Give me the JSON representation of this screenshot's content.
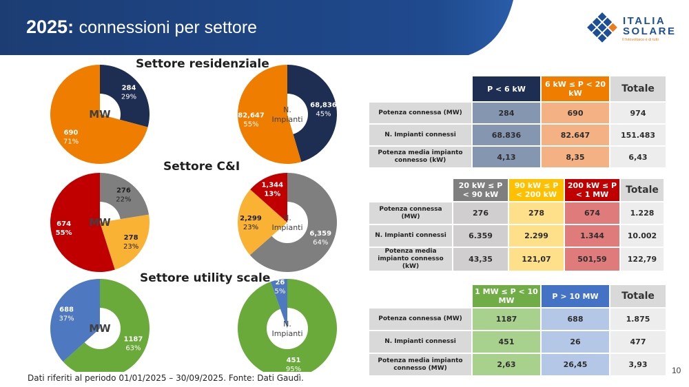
{
  "header": {
    "title_year": "2025:",
    "title_rest": "connessioni per settore",
    "logo": {
      "line1": "ITALIA",
      "line2": "SOLARE",
      "tagline": "Il fotovoltaico è di tutti"
    }
  },
  "colors": {
    "header_blue": "#1c3d74",
    "navy": "#1d2e52",
    "orange": "#ef7d00",
    "gray": "#7f7f7f",
    "yellow": "#f9b233",
    "red": "#c00000",
    "blue": "#4e78c0",
    "green": "#6aaa3a"
  },
  "sections": [
    {
      "title": "Settore residenziale"
    },
    {
      "title": "Settore C&I"
    },
    {
      "title": "Settore utility scale"
    }
  ],
  "chart_data": [
    {
      "type": "pie",
      "variant": "donut",
      "section": "Settore residenziale",
      "center_label": "MW",
      "categories": [
        "P < 6 kW",
        "6 kW ≤ P < 20 kW"
      ],
      "values": [
        284,
        690
      ],
      "percent": [
        29,
        71
      ],
      "value_labels": [
        "284",
        "690"
      ],
      "percent_labels": [
        "29%",
        "71%"
      ],
      "colors": [
        "#1d2e52",
        "#ef7d00"
      ],
      "label_colors": [
        "#ffffff",
        "#ffffff"
      ]
    },
    {
      "type": "pie",
      "variant": "donut",
      "section": "Settore residenziale",
      "center_label": "N. Impianti",
      "categories": [
        "P < 6 kW",
        "6 kW ≤ P < 20 kW"
      ],
      "values": [
        68836,
        82647
      ],
      "percent": [
        45,
        55
      ],
      "value_labels": [
        "68,836",
        "82,647"
      ],
      "percent_labels": [
        "45%",
        "55%"
      ],
      "colors": [
        "#1d2e52",
        "#ef7d00"
      ],
      "label_colors": [
        "#ffffff",
        "#ffffff"
      ]
    },
    {
      "type": "pie",
      "variant": "donut",
      "section": "Settore C&I",
      "center_label": "MW",
      "categories": [
        "20 kW ≤ P < 90 kW",
        "90 kW ≤ P < 200 kW",
        "200 kW ≤ P < 1 MW"
      ],
      "values": [
        276,
        278,
        674
      ],
      "percent": [
        22,
        23,
        55
      ],
      "value_labels": [
        "276",
        "278",
        "674"
      ],
      "percent_labels": [
        "22%",
        "23%",
        "55%"
      ],
      "colors": [
        "#7f7f7f",
        "#f9b233",
        "#c00000"
      ],
      "label_colors": [
        "#1f1f1f",
        "#1f1f1f",
        "#ffffff"
      ]
    },
    {
      "type": "pie",
      "variant": "donut",
      "section": "Settore C&I",
      "center_label": "N. Impianti",
      "categories": [
        "20 kW ≤ P < 90 kW",
        "90 kW ≤ P < 200 kW",
        "200 kW ≤ P < 1 MW"
      ],
      "values": [
        6359,
        2299,
        1344
      ],
      "percent": [
        64,
        23,
        13
      ],
      "value_labels": [
        "6,359",
        "2,299",
        "1,344"
      ],
      "percent_labels": [
        "64%",
        "23%",
        "13%"
      ],
      "colors": [
        "#7f7f7f",
        "#f9b233",
        "#c00000"
      ],
      "label_colors": [
        "#ffffff",
        "#1f1f1f",
        "#ffffff"
      ]
    },
    {
      "type": "pie",
      "variant": "donut",
      "section": "Settore utility scale",
      "center_label": "MW",
      "categories": [
        "1 MW ≤ P < 10 MW",
        "P > 10 MW"
      ],
      "values": [
        1187,
        688
      ],
      "percent": [
        63,
        37
      ],
      "value_labels": [
        "1187",
        "688"
      ],
      "percent_labels": [
        "63%",
        "37%"
      ],
      "colors": [
        "#6aaa3a",
        "#4e78c0"
      ],
      "label_colors": [
        "#ffffff",
        "#ffffff"
      ]
    },
    {
      "type": "pie",
      "variant": "donut",
      "section": "Settore utility scale",
      "center_label": "N. Impianti",
      "categories": [
        "1 MW ≤ P < 10 MW",
        "P > 10 MW"
      ],
      "values": [
        451,
        26
      ],
      "percent": [
        95,
        5
      ],
      "value_labels": [
        "451",
        "26"
      ],
      "percent_labels": [
        "95%",
        "5%"
      ],
      "colors": [
        "#6aaa3a",
        "#4e78c0"
      ],
      "label_colors": [
        "#ffffff",
        "#ffffff"
      ]
    }
  ],
  "tables": [
    {
      "columns": [
        {
          "label": "P < 6 kW",
          "bg": "#1d2e52",
          "fg": "#ffffff",
          "cell_bg": "#8496b0"
        },
        {
          "label": "6 kW ≤ P < 20 kW",
          "bg": "#ef7d00",
          "fg": "#ffffff",
          "cell_bg": "#f4b183"
        }
      ],
      "total_label": "Totale",
      "rows": [
        {
          "label": "Potenza connessa  (MW)",
          "values": [
            "284",
            "690"
          ],
          "total": "974"
        },
        {
          "label": "N. Impianti connessi",
          "values": [
            "68.836",
            "82.647"
          ],
          "total": "151.483"
        },
        {
          "label": "Potenza media impianto connesso (kW)",
          "values": [
            "4,13",
            "8,35"
          ],
          "total": "6,43"
        }
      ]
    },
    {
      "columns": [
        {
          "label": "20 kW ≤ P < 90 kW",
          "bg": "#7f7f7f",
          "fg": "#ffffff",
          "cell_bg": "#d0cece"
        },
        {
          "label": "90 kW ≤ P < 200 kW",
          "bg": "#ffc000",
          "fg": "#ffffff",
          "cell_bg": "#ffe08a"
        },
        {
          "label": "200 kW ≤ P < 1 MW",
          "bg": "#c00000",
          "fg": "#ffffff",
          "cell_bg": "#e07b7b"
        }
      ],
      "total_label": "Totale",
      "rows": [
        {
          "label": "Potenza connessa  (MW)",
          "values": [
            "276",
            "278",
            "674"
          ],
          "total": "1.228"
        },
        {
          "label": "N. Impianti connessi",
          "values": [
            "6.359",
            "2.299",
            "1.344"
          ],
          "total": "10.002"
        },
        {
          "label": "Potenza media impianto connesso (kW)",
          "values": [
            "43,35",
            "121,07",
            "501,59"
          ],
          "total": "122,79"
        }
      ]
    },
    {
      "columns": [
        {
          "label": "1 MW ≤ P  < 10 MW",
          "bg": "#70ad47",
          "fg": "#ffffff",
          "cell_bg": "#a9d18e"
        },
        {
          "label": "P > 10 MW",
          "bg": "#4472c4",
          "fg": "#ffffff",
          "cell_bg": "#b4c7e7"
        }
      ],
      "total_label": "Totale",
      "rows": [
        {
          "label": "Potenza connessa  (MW)",
          "values": [
            "1187",
            "688"
          ],
          "total": "1.875"
        },
        {
          "label": "N. Impianti connessi",
          "values": [
            "451",
            "26"
          ],
          "total": "477"
        },
        {
          "label": "Potenza media impianto connesso (MW)",
          "values": [
            "2,63",
            "26,45"
          ],
          "total": "3,93"
        }
      ]
    }
  ],
  "footer": {
    "source": "Dati riferiti al periodo 01/01/2025 – 30/09/2025. Fonte: Dati Gaudì.",
    "page_number": "10"
  }
}
